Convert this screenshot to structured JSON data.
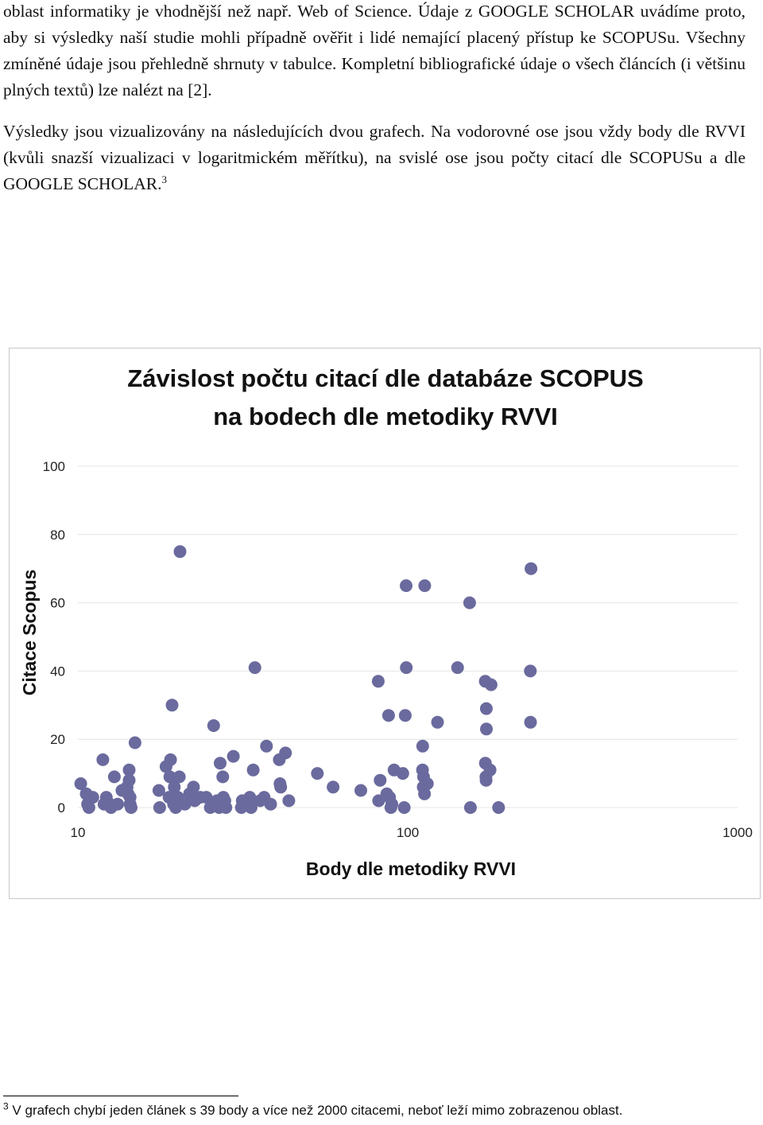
{
  "paragraphs": {
    "p1": "oblast informatiky je vhodnější než např. Web of Science. Údaje z GOOGLE SCHOLAR uvádíme proto, aby si výsledky naší studie mohli případně ověřit i lidé nemající placený přístup ke SCOPUSu. Všechny zmíněné údaje jsou přehledně shrnuty v tabulce. Kompletní bibliografické údaje o všech článcích (i většinu plných textů) lze nalézt na [2].",
    "p2": "Výsledky jsou vizualizovány na následujících dvou grafech. Na vodorovné ose jsou vždy body dle RVVI (kvůli snazší vizualizaci v logaritmickém měřítku), na svislé ose jsou počty citací dle SCOPUSu a dle GOOGLE SCHOLAR.",
    "p2_footnote_ref": "3"
  },
  "footnote": {
    "number": "3",
    "text": "V grafech chybí jeden článek s 39 body a více než 2000 citacemi, neboť leží  mimo zobrazenou oblast."
  },
  "chart_data": {
    "type": "scatter",
    "title_line1": "Závislost počtu citací dle databáze SCOPUS",
    "title_line2": "na bodech dle metodiky RVVI",
    "xlabel": "Body dle metodiky RVVI",
    "ylabel": "Citace Scopus",
    "xscale": "log",
    "xlim": [
      10,
      1000
    ],
    "ylim": [
      0,
      100
    ],
    "xticks": [
      "10",
      "100",
      "1000"
    ],
    "yticks": [
      "0",
      "20",
      "40",
      "60",
      "80",
      "100"
    ],
    "grid": "horizontal",
    "legend": "none",
    "marker_color": "#6a6a9e",
    "points": [
      [
        10.2,
        7
      ],
      [
        10.6,
        4
      ],
      [
        10.7,
        1
      ],
      [
        10.8,
        0
      ],
      [
        11.1,
        3
      ],
      [
        11.9,
        14
      ],
      [
        12.0,
        1
      ],
      [
        12.2,
        3
      ],
      [
        12.5,
        1
      ],
      [
        12.6,
        0
      ],
      [
        12.9,
        9
      ],
      [
        13.2,
        1
      ],
      [
        13.6,
        5
      ],
      [
        14.1,
        6
      ],
      [
        14.2,
        4
      ],
      [
        14.3,
        11
      ],
      [
        14.3,
        8
      ],
      [
        14.4,
        3
      ],
      [
        14.4,
        1
      ],
      [
        14.5,
        0
      ],
      [
        14.9,
        19
      ],
      [
        17.6,
        5
      ],
      [
        17.7,
        0
      ],
      [
        18.5,
        12
      ],
      [
        18.9,
        3
      ],
      [
        19.0,
        9
      ],
      [
        19.1,
        14
      ],
      [
        19.3,
        30
      ],
      [
        19.5,
        1
      ],
      [
        19.6,
        6
      ],
      [
        19.8,
        0
      ],
      [
        20.1,
        3
      ],
      [
        20.3,
        9
      ],
      [
        20.4,
        75
      ],
      [
        21.1,
        1
      ],
      [
        21.8,
        4
      ],
      [
        22.4,
        6
      ],
      [
        22.6,
        2
      ],
      [
        23.5,
        3
      ],
      [
        24.5,
        3
      ],
      [
        25.2,
        0
      ],
      [
        25.7,
        1
      ],
      [
        25.8,
        24
      ],
      [
        26.4,
        2
      ],
      [
        26.8,
        0
      ],
      [
        27.0,
        13
      ],
      [
        27.5,
        9
      ],
      [
        27.6,
        3
      ],
      [
        27.9,
        2
      ],
      [
        28.1,
        0
      ],
      [
        29.6,
        15
      ],
      [
        31.3,
        0
      ],
      [
        31.5,
        2
      ],
      [
        33.2,
        3
      ],
      [
        33.5,
        0
      ],
      [
        34.0,
        11
      ],
      [
        34.4,
        41
      ],
      [
        35.7,
        2
      ],
      [
        36.7,
        3
      ],
      [
        37.3,
        18
      ],
      [
        38.4,
        1
      ],
      [
        40.8,
        14
      ],
      [
        41.0,
        7
      ],
      [
        41.2,
        6
      ],
      [
        42.6,
        16
      ],
      [
        43.6,
        2
      ],
      [
        53.2,
        10
      ],
      [
        59.4,
        6
      ],
      [
        72.1,
        5
      ],
      [
        81.4,
        37
      ],
      [
        81.6,
        2
      ],
      [
        82.5,
        8
      ],
      [
        86.4,
        4
      ],
      [
        87.5,
        27
      ],
      [
        88.1,
        3
      ],
      [
        88.9,
        0
      ],
      [
        89.5,
        1
      ],
      [
        90.9,
        11
      ],
      [
        96.6,
        10
      ],
      [
        97.6,
        0
      ],
      [
        98.3,
        27
      ],
      [
        98.9,
        65
      ],
      [
        99.0,
        41
      ],
      [
        110.9,
        11
      ],
      [
        111.0,
        18
      ],
      [
        111.4,
        6
      ],
      [
        111.7,
        9
      ],
      [
        112.4,
        4
      ],
      [
        112.6,
        65
      ],
      [
        114.7,
        7
      ],
      [
        123.1,
        25
      ],
      [
        141.6,
        41
      ],
      [
        154.1,
        60
      ],
      [
        154.9,
        0
      ],
      [
        171.9,
        37
      ],
      [
        172.0,
        13
      ],
      [
        172.6,
        9
      ],
      [
        172.8,
        8
      ],
      [
        173.1,
        29
      ],
      [
        173.2,
        23
      ],
      [
        177.7,
        11
      ],
      [
        179.0,
        36
      ],
      [
        188.5,
        0
      ],
      [
        235.4,
        40
      ],
      [
        235.6,
        25
      ],
      [
        236.4,
        70
      ]
    ]
  }
}
